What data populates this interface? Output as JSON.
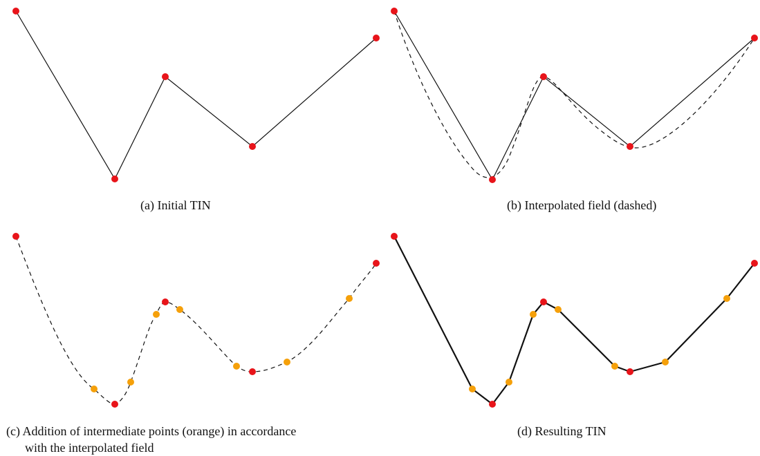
{
  "captions": {
    "a": "(a) Initial TIN",
    "b": "(b) Interpolated field (dashed)",
    "c_line1": "(c) Addition of intermediate points (orange) in accordance",
    "c_line2": "with the interpolated field",
    "d": "(d) Resulting TIN"
  },
  "colors": {
    "original_point": "#e8141a",
    "intermediate_point": "#f5a00a",
    "line": "#111111"
  }
}
